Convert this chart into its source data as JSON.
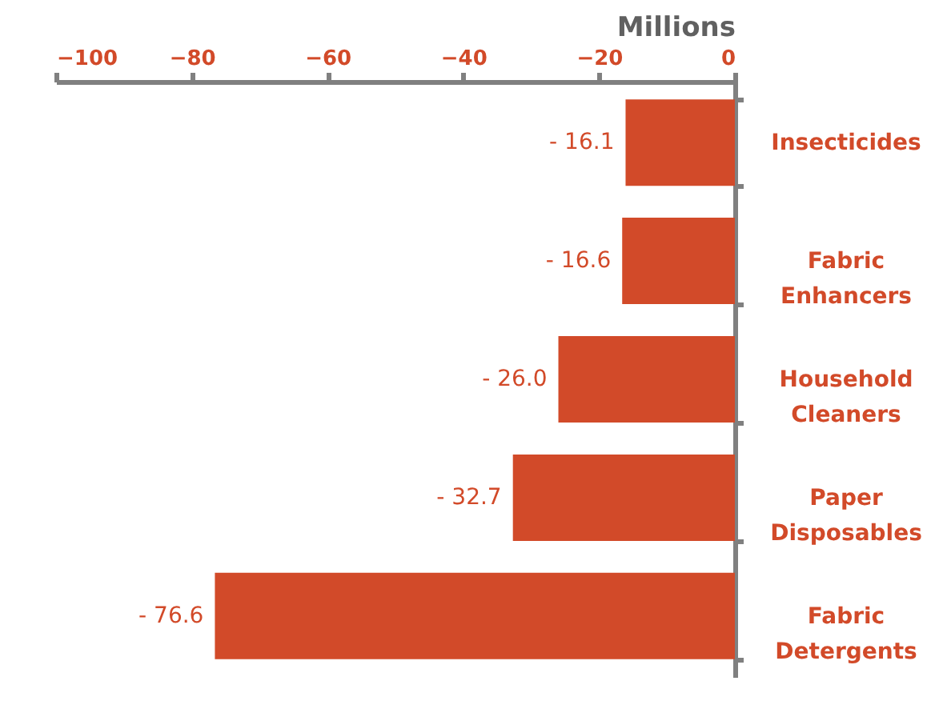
{
  "chart_data": {
    "type": "bar",
    "orientation": "horizontal",
    "xlabel": "Millions",
    "categories": [
      "Insecticides",
      "Fabric Enhancers",
      "Household Cleaners",
      "Paper Disposables",
      "Fabric Detergents"
    ],
    "values": [
      -16.1,
      -16.6,
      -26.0,
      -32.7,
      -76.6
    ],
    "value_labels": [
      "- 16.1",
      "- 16.6",
      "- 26.0",
      "- 32.7",
      "- 76.6"
    ],
    "color": "#d24a29",
    "xlim": [
      -100,
      0
    ],
    "xticks": [
      -100,
      -80,
      -60,
      -40,
      -20,
      0
    ],
    "grid": false
  }
}
